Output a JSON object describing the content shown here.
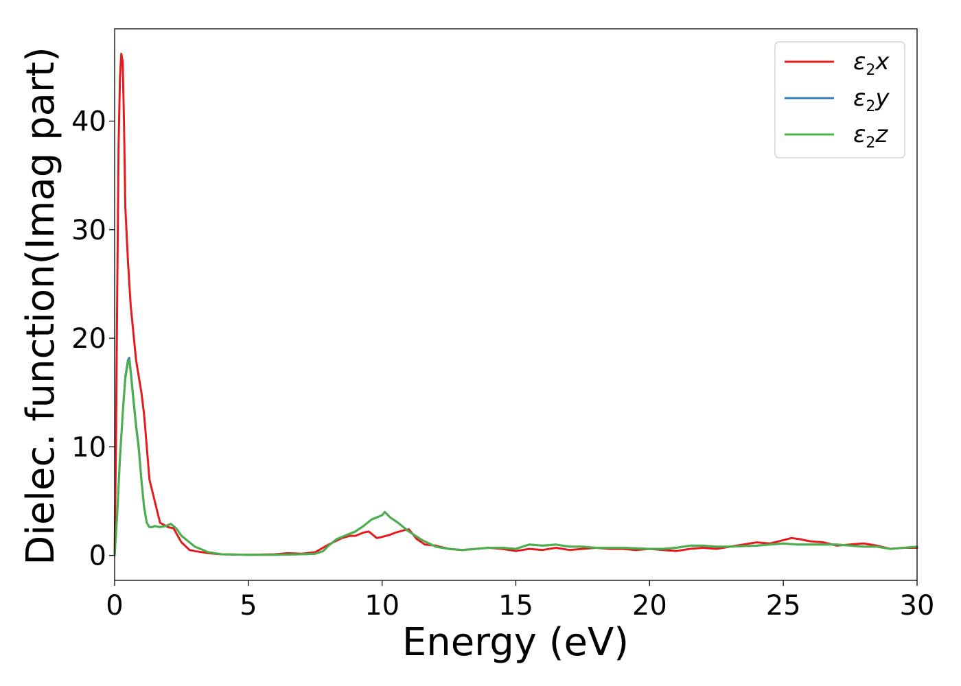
{
  "chart_data": {
    "type": "line",
    "title": "",
    "xlabel": "Energy (eV)",
    "ylabel": "Dielec. function(Imag part)",
    "xlim": [
      0,
      30
    ],
    "ylim": [
      -2.3,
      48.5
    ],
    "xticks": [
      0,
      5,
      10,
      15,
      20,
      25,
      30
    ],
    "yticks": [
      0,
      10,
      20,
      30,
      40
    ],
    "xtick_labels": [
      "0",
      "5",
      "10",
      "15",
      "20",
      "25",
      "30"
    ],
    "ytick_labels": [
      "0",
      "10",
      "20",
      "30",
      "40"
    ],
    "grid": false,
    "legend_position": "top-right",
    "series": [
      {
        "name": "ε2x",
        "legend": {
          "base": "ε",
          "sub": "2",
          "var": "x"
        },
        "color": "#e41a1c",
        "x": [
          0,
          0.05,
          0.1,
          0.15,
          0.2,
          0.25,
          0.3,
          0.35,
          0.4,
          0.5,
          0.6,
          0.8,
          1.0,
          1.1,
          1.2,
          1.3,
          1.5,
          1.7,
          2.0,
          2.2,
          2.5,
          2.8,
          3.0,
          3.5,
          4.0,
          5.0,
          6.0,
          6.5,
          7.0,
          7.5,
          8.0,
          8.5,
          8.8,
          9.0,
          9.3,
          9.5,
          9.8,
          10.0,
          10.3,
          10.5,
          10.8,
          11.0,
          11.3,
          11.6,
          12.0,
          12.5,
          13.0,
          13.5,
          14.0,
          14.5,
          15.0,
          15.5,
          16.0,
          16.5,
          17.0,
          17.5,
          18.0,
          18.5,
          19.0,
          19.5,
          20.0,
          20.5,
          21.0,
          21.5,
          22.0,
          22.5,
          23.0,
          23.5,
          24.0,
          24.5,
          25.0,
          25.3,
          25.6,
          26.0,
          26.5,
          27.0,
          27.5,
          28.0,
          28.5,
          29.0,
          29.5,
          30.0
        ],
        "y": [
          0,
          10,
          25,
          38,
          44,
          46.2,
          45.5,
          40,
          32,
          27,
          23,
          18,
          15,
          13,
          10,
          7,
          5,
          3,
          2.6,
          2.5,
          1.2,
          0.5,
          0.4,
          0.2,
          0.1,
          0.05,
          0.1,
          0.2,
          0.15,
          0.3,
          1.0,
          1.6,
          1.8,
          1.8,
          2.1,
          2.2,
          1.6,
          1.7,
          1.9,
          2.1,
          2.3,
          2.4,
          1.5,
          1.0,
          0.9,
          0.6,
          0.5,
          0.6,
          0.7,
          0.6,
          0.4,
          0.6,
          0.5,
          0.7,
          0.5,
          0.6,
          0.7,
          0.6,
          0.6,
          0.5,
          0.6,
          0.5,
          0.4,
          0.6,
          0.7,
          0.6,
          0.8,
          1.0,
          1.2,
          1.1,
          1.4,
          1.6,
          1.5,
          1.3,
          1.2,
          0.9,
          1.0,
          1.1,
          0.9,
          0.6,
          0.7,
          0.7
        ]
      },
      {
        "name": "ε2y",
        "legend": {
          "base": "ε",
          "sub": "2",
          "var": "y"
        },
        "color": "#377eb8",
        "x": [
          0,
          0.1,
          0.2,
          0.3,
          0.4,
          0.5,
          0.55,
          0.6,
          0.7,
          0.8,
          0.9,
          1.0,
          1.1,
          1.2,
          1.3,
          1.4,
          1.5,
          1.7,
          1.9,
          2.1,
          2.3,
          2.5,
          2.8,
          3.0,
          3.5,
          4.0,
          5.0,
          6.0,
          7.0,
          7.5,
          7.8,
          8.0,
          8.3,
          8.7,
          9.0,
          9.3,
          9.6,
          9.8,
          10.0,
          10.1,
          10.3,
          10.6,
          11.0,
          11.5,
          12.0,
          12.5,
          13.0,
          13.5,
          14.0,
          14.5,
          15.0,
          15.5,
          16.0,
          16.5,
          17.0,
          17.5,
          18.0,
          19.0,
          20.0,
          20.5,
          21.0,
          21.5,
          22.0,
          22.5,
          23.0,
          24.0,
          25.0,
          25.5,
          26.0,
          26.5,
          27.0,
          27.5,
          28.0,
          28.5,
          29.0,
          29.5,
          30.0
        ],
        "y": [
          0,
          4,
          9,
          13,
          16.5,
          18,
          18.2,
          17,
          14.5,
          12,
          10,
          7,
          4.5,
          3,
          2.6,
          2.6,
          2.7,
          2.6,
          2.7,
          2.9,
          2.5,
          1.8,
          1.2,
          0.8,
          0.3,
          0.1,
          0.05,
          0.05,
          0.1,
          0.15,
          0.4,
          0.9,
          1.5,
          1.9,
          2.2,
          2.7,
          3.3,
          3.5,
          3.7,
          4.0,
          3.5,
          3.0,
          2.2,
          1.4,
          0.8,
          0.6,
          0.5,
          0.6,
          0.7,
          0.7,
          0.6,
          1.0,
          0.9,
          1.0,
          0.8,
          0.8,
          0.7,
          0.7,
          0.6,
          0.6,
          0.7,
          0.9,
          0.9,
          0.8,
          0.8,
          0.9,
          1.1,
          1.0,
          1.0,
          1.0,
          1.0,
          0.9,
          0.8,
          0.8,
          0.6,
          0.7,
          0.8
        ]
      },
      {
        "name": "ε2z",
        "legend": {
          "base": "ε",
          "sub": "2",
          "var": "z"
        },
        "color": "#4daf4a",
        "x": [
          0,
          0.1,
          0.2,
          0.3,
          0.4,
          0.5,
          0.55,
          0.6,
          0.7,
          0.8,
          0.9,
          1.0,
          1.1,
          1.2,
          1.3,
          1.4,
          1.5,
          1.7,
          1.9,
          2.1,
          2.3,
          2.5,
          2.8,
          3.0,
          3.5,
          4.0,
          5.0,
          6.0,
          7.0,
          7.5,
          7.8,
          8.0,
          8.3,
          8.7,
          9.0,
          9.3,
          9.6,
          9.8,
          10.0,
          10.1,
          10.3,
          10.6,
          11.0,
          11.5,
          12.0,
          12.5,
          13.0,
          13.5,
          14.0,
          14.5,
          15.0,
          15.5,
          16.0,
          16.5,
          17.0,
          17.5,
          18.0,
          19.0,
          20.0,
          20.5,
          21.0,
          21.5,
          22.0,
          22.5,
          23.0,
          24.0,
          25.0,
          25.5,
          26.0,
          26.5,
          27.0,
          27.5,
          28.0,
          28.5,
          29.0,
          29.5,
          30.0
        ],
        "y": [
          0,
          4,
          9,
          13,
          16.3,
          17.8,
          18.0,
          16.8,
          14.3,
          11.8,
          9.8,
          6.9,
          4.4,
          3,
          2.6,
          2.6,
          2.7,
          2.6,
          2.7,
          2.9,
          2.5,
          1.8,
          1.2,
          0.8,
          0.3,
          0.1,
          0.05,
          0.05,
          0.1,
          0.15,
          0.4,
          0.9,
          1.5,
          1.9,
          2.2,
          2.7,
          3.3,
          3.5,
          3.7,
          4.0,
          3.5,
          3.0,
          2.2,
          1.4,
          0.8,
          0.6,
          0.5,
          0.6,
          0.7,
          0.7,
          0.6,
          1.0,
          0.9,
          1.0,
          0.8,
          0.8,
          0.7,
          0.7,
          0.6,
          0.6,
          0.7,
          0.9,
          0.9,
          0.8,
          0.8,
          0.9,
          1.1,
          1.0,
          1.0,
          1.0,
          1.0,
          0.9,
          0.8,
          0.8,
          0.6,
          0.7,
          0.8
        ]
      }
    ]
  }
}
